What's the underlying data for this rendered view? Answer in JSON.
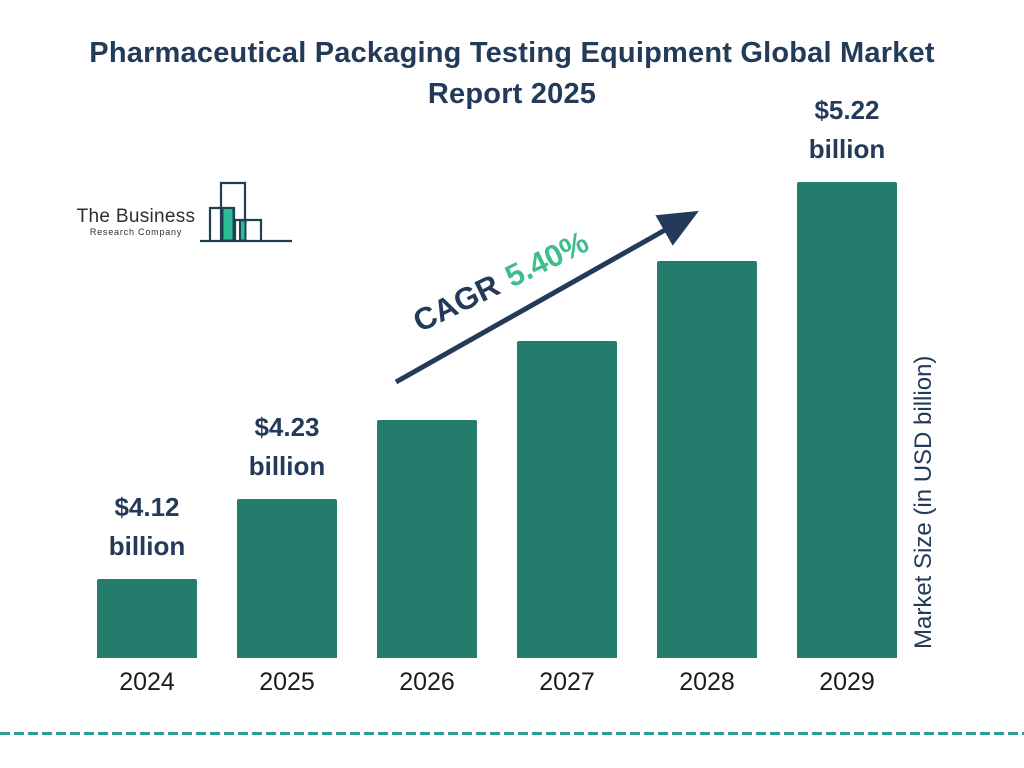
{
  "header": {
    "title": "Pharmaceutical Packaging Testing Equipment Global Market Report 2025"
  },
  "logo": {
    "name_line1": "The Business",
    "name_line2": "Research Company"
  },
  "chart_data": {
    "type": "bar",
    "title": "Pharmaceutical Packaging Testing Equipment Global Market Report 2025",
    "categories": [
      "2024",
      "2025",
      "2026",
      "2027",
      "2028",
      "2029"
    ],
    "values": [
      4.12,
      4.23,
      null,
      null,
      null,
      5.22
    ],
    "unit": "USD billion",
    "ylabel": "Market Size (in USD billion)",
    "xlabel": "",
    "grid": false,
    "legend": "none",
    "bar_heights_relative": [
      0.1667,
      0.3333,
      0.5,
      0.6667,
      0.8333,
      1.0
    ],
    "annotations": [
      {
        "category": "2024",
        "lines": [
          "$4.12",
          "billion"
        ]
      },
      {
        "category": "2025",
        "lines": [
          "$4.23",
          "billion"
        ]
      },
      {
        "category": "2029",
        "lines": [
          "$5.22",
          "billion"
        ]
      }
    ],
    "cagr": {
      "label": "CAGR",
      "value": "5.40%"
    }
  },
  "colors": {
    "navy": "#233A59",
    "bar_teal": "#247D6C",
    "green": "#3DBE8D",
    "dash_teal": "#2A9D96",
    "year_text": "#1C1C1C",
    "logo_outline": "#1E4050",
    "logo_green": "#2CBD96",
    "logo_text": "#2E2E2E",
    "background": "#FFFFFF"
  }
}
